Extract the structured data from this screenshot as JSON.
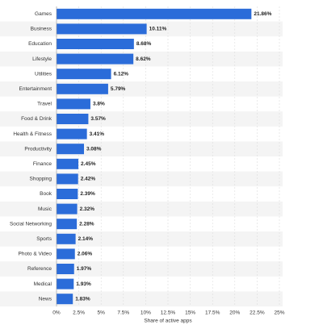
{
  "chart_data": {
    "type": "bar",
    "orientation": "horizontal",
    "x_label": "Share of active apps",
    "categories": [
      "Games",
      "Business",
      "Education",
      "Lifestyle",
      "Utilities",
      "Entertainment",
      "Travel",
      "Food & Drink",
      "Health & Fitness",
      "Productivity",
      "Finance",
      "Shopping",
      "Book",
      "Music",
      "Social Networking",
      "Sports",
      "Photo & Video",
      "Reference",
      "Medical",
      "News"
    ],
    "values": [
      21.86,
      10.11,
      8.68,
      8.62,
      6.12,
      5.79,
      3.8,
      3.57,
      3.41,
      3.08,
      2.45,
      2.42,
      2.39,
      2.32,
      2.28,
      2.14,
      2.06,
      1.97,
      1.93,
      1.83
    ],
    "value_labels": [
      "21.86%",
      "10.11%",
      "8.68%",
      "8.62%",
      "6.12%",
      "5.79%",
      "3.8%",
      "3.57%",
      "3.41%",
      "3.08%",
      "2.45%",
      "2.42%",
      "2.39%",
      "2.32%",
      "2.28%",
      "2.14%",
      "2.06%",
      "1.97%",
      "1.93%",
      "1.83%"
    ],
    "color": "#2b6cd9",
    "xlim": [
      0,
      25
    ],
    "xticks": [
      {
        "value": 0,
        "label": "0%"
      },
      {
        "value": 2.5,
        "label": "2.5%"
      },
      {
        "value": 5,
        "label": "5%"
      },
      {
        "value": 7.5,
        "label": "7.5%"
      },
      {
        "value": 10,
        "label": "10%"
      },
      {
        "value": 12.5,
        "label": "12.5%"
      },
      {
        "value": 15,
        "label": "15%"
      },
      {
        "value": 17.5,
        "label": "17.5%"
      },
      {
        "value": 20,
        "label": "20%"
      },
      {
        "value": 22.5,
        "label": "22.5%"
      },
      {
        "value": 25,
        "label": "25%"
      }
    ],
    "grid": true
  }
}
